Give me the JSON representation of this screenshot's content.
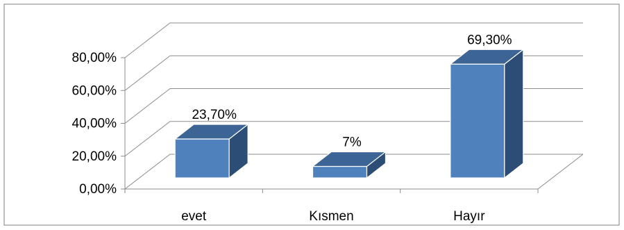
{
  "chart_data": {
    "type": "bar",
    "style": "3d-column",
    "categories": [
      "evet",
      "Kısmen",
      "Hayır"
    ],
    "values": [
      23.7,
      7,
      69.3
    ],
    "data_labels": [
      "23,70%",
      "7%",
      "69,30%"
    ],
    "y_ticks": [
      "0,00%",
      "20,00%",
      "40,00%",
      "60,00%",
      "80,00%"
    ],
    "ylim": [
      0,
      80
    ],
    "grid": true,
    "legend": "none",
    "colors": {
      "bar_front": "#4f81bd",
      "bar_side": "#2c4d75",
      "bar_top": "#3c6494",
      "bar_edge": "#ffffff",
      "gridline": "#8c8c8c",
      "border": "#7f7f7f"
    }
  }
}
